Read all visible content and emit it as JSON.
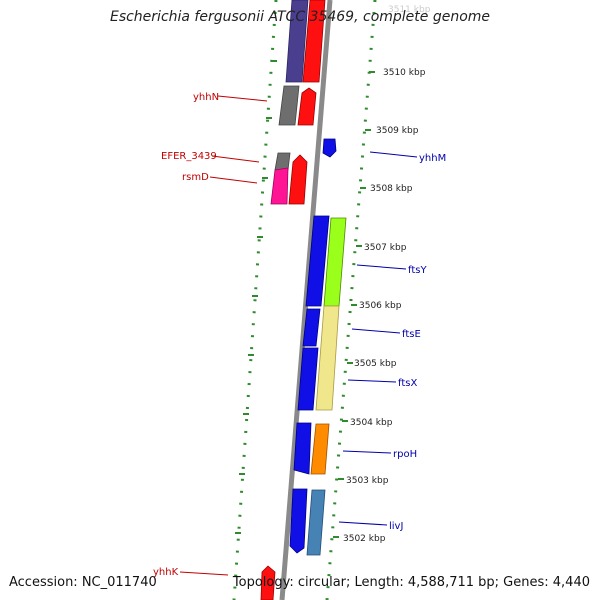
{
  "title": "Escherichia fergusonii ATCC 35469, complete genome",
  "footer": {
    "accession": "Accession: NC_011740",
    "topology": "Topology: circular; Length: 4,588,711 bp; Genes: 4,440"
  },
  "ticks": [
    "3511 kbp",
    "3510 kbp",
    "3509 kbp",
    "3508 kbp",
    "3507 kbp",
    "3506 kbp",
    "3505 kbp",
    "3504 kbp",
    "3503 kbp",
    "3502 kbp"
  ],
  "genes_left": [
    "yhhN",
    "EFER_3439",
    "rsmD",
    "yhhK"
  ],
  "genes_right": [
    "yhhM",
    "ftsY",
    "ftsE",
    "ftsX",
    "rpoH",
    "livJ"
  ],
  "colors": {
    "backbone": "#8a8a8a",
    "dots": "#2e8b2e",
    "label_left": "#c00000",
    "label_right": "#0000aa",
    "tick_text": "#222222",
    "gene_blue": "#1010e6",
    "gene_red": "#ff1010",
    "gene_purple": "#4a3f8f",
    "gene_gray": "#6e6e6e",
    "gene_magenta": "#ff1493",
    "gene_lime": "#9aff1a",
    "gene_khaki": "#f0e68c",
    "gene_orange": "#ff8c00",
    "gene_steel": "#4682b4"
  }
}
